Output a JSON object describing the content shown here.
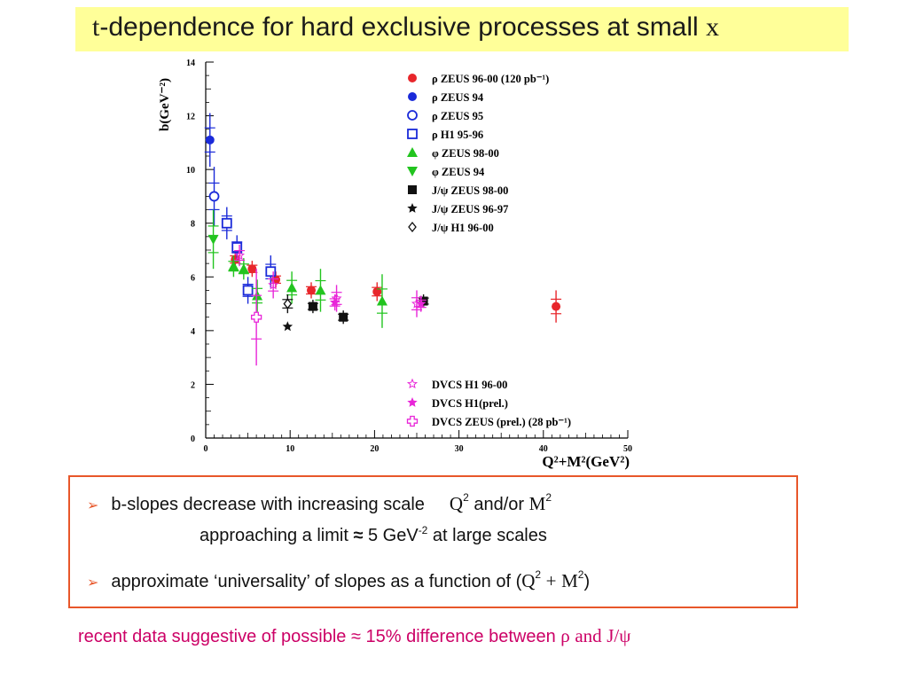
{
  "title": {
    "t": "t",
    "rest": "-dependence for hard exclusive processes at small ",
    "x": "x"
  },
  "chart_data": {
    "type": "scatter",
    "ylabel": "b(GeV⁻²)",
    "xlabel": "Q²+M²(GeV²)",
    "xlim": [
      0,
      50
    ],
    "ylim": [
      0,
      14
    ],
    "xticks": [
      "0",
      "10",
      "20",
      "30",
      "40",
      "50"
    ],
    "yticks": [
      "0",
      "2",
      "4",
      "6",
      "8",
      "10",
      "12",
      "14"
    ],
    "legend_position": "top-right",
    "series": [
      {
        "name": "ρ ZEUS  96-00 (120 pb⁻¹)",
        "marker": "circle-filled",
        "color": "#e8262b",
        "points": [
          [
            3.5,
            6.65,
            0.3
          ],
          [
            5.5,
            6.3,
            0.3
          ],
          [
            8.3,
            5.9,
            0.3
          ],
          [
            12.5,
            5.5,
            0.3
          ],
          [
            20.3,
            5.45,
            0.35
          ],
          [
            41.5,
            4.9,
            0.6
          ]
        ]
      },
      {
        "name": "ρ ZEUS 94",
        "marker": "circle-filled",
        "color": "#1a2ad9",
        "points": [
          [
            0.5,
            11.1,
            1.0
          ]
        ]
      },
      {
        "name": "ρ ZEUS 95",
        "marker": "circle-open",
        "color": "#1a2ad9",
        "points": [
          [
            1.0,
            9.0,
            1.1
          ]
        ]
      },
      {
        "name": "ρ H1 95-96",
        "marker": "square-open",
        "color": "#1a2ad9",
        "points": [
          [
            2.5,
            8.0,
            0.6
          ],
          [
            3.7,
            7.1,
            0.45
          ],
          [
            5.0,
            5.5,
            0.5
          ],
          [
            7.7,
            6.2,
            0.6
          ]
        ]
      },
      {
        "name": "φ ZEUS 98-00",
        "marker": "triangle-up",
        "color": "#22c41f",
        "points": [
          [
            3.3,
            6.4,
            0.4
          ],
          [
            4.5,
            6.3,
            0.4
          ],
          [
            6.1,
            5.3,
            0.6
          ],
          [
            10.2,
            5.6,
            0.6
          ],
          [
            13.6,
            5.5,
            0.8
          ],
          [
            20.9,
            5.1,
            1.0
          ]
        ]
      },
      {
        "name": "φ ZEUS 94",
        "marker": "triangle-down",
        "color": "#22c41f",
        "points": [
          [
            0.9,
            7.4,
            1.1
          ]
        ]
      },
      {
        "name": "J/ψ ZEUS 98-00",
        "marker": "square-filled",
        "color": "#111111",
        "points": [
          [
            12.7,
            4.9,
            0.25
          ],
          [
            16.3,
            4.5,
            0.25
          ],
          [
            25.8,
            5.1,
            0.25
          ]
        ]
      },
      {
        "name": "J/ψ ZEUS 96-97",
        "marker": "star",
        "color": "#111111",
        "points": [
          [
            9.7,
            4.15,
            0.0
          ]
        ]
      },
      {
        "name": "J/ψ H1 96-00",
        "marker": "diamond-open",
        "color": "#111111",
        "points": [
          [
            9.7,
            5.0,
            0.35
          ]
        ]
      },
      {
        "name": "DVCS H1 96-00",
        "marker": "star-open",
        "color": "#e825d8",
        "points": [
          [
            4.0,
            6.8,
            0.4
          ],
          [
            8.0,
            5.7,
            0.5
          ],
          [
            15.5,
            5.2,
            0.5
          ],
          [
            25.0,
            5.0,
            0.5
          ]
        ]
      },
      {
        "name": "DVCS H1(prel.)",
        "marker": "star",
        "color": "#e825d8",
        "points": [
          [
            15.3,
            5.05,
            0.3
          ],
          [
            25.5,
            5.0,
            0.3
          ]
        ]
      },
      {
        "name": "DVCS ZEUS (prel.) (28 pb⁻¹)",
        "marker": "cross-open",
        "color": "#e825d8",
        "points": [
          [
            6.0,
            4.5,
            1.8
          ]
        ]
      }
    ]
  },
  "bullets": [
    {
      "arrow": "➢",
      "text": "b-slopes decrease with increasing scale",
      "q": "Q",
      "q_sup": "2",
      "andor": "and/or",
      "m": "M",
      "m_sup": "2"
    },
    {
      "limit_pre": "approaching a limit ",
      "approx": "≈",
      "limit_val": " 5 GeV",
      "limit_sup": "-2",
      "limit_post": "at large scales"
    },
    {
      "arrow": "➢",
      "text": "approximate ‘universality’ of slopes as a function of (",
      "q": "Q",
      "q_sup": "2",
      "plus": "+",
      "m": "M",
      "m_sup": "2",
      "close": ")"
    }
  ],
  "footnote": {
    "text": "recent data suggestive of possible ≈ 15% difference between ",
    "rho": "ρ",
    "and": "and",
    "jpsi": "J/ψ"
  }
}
